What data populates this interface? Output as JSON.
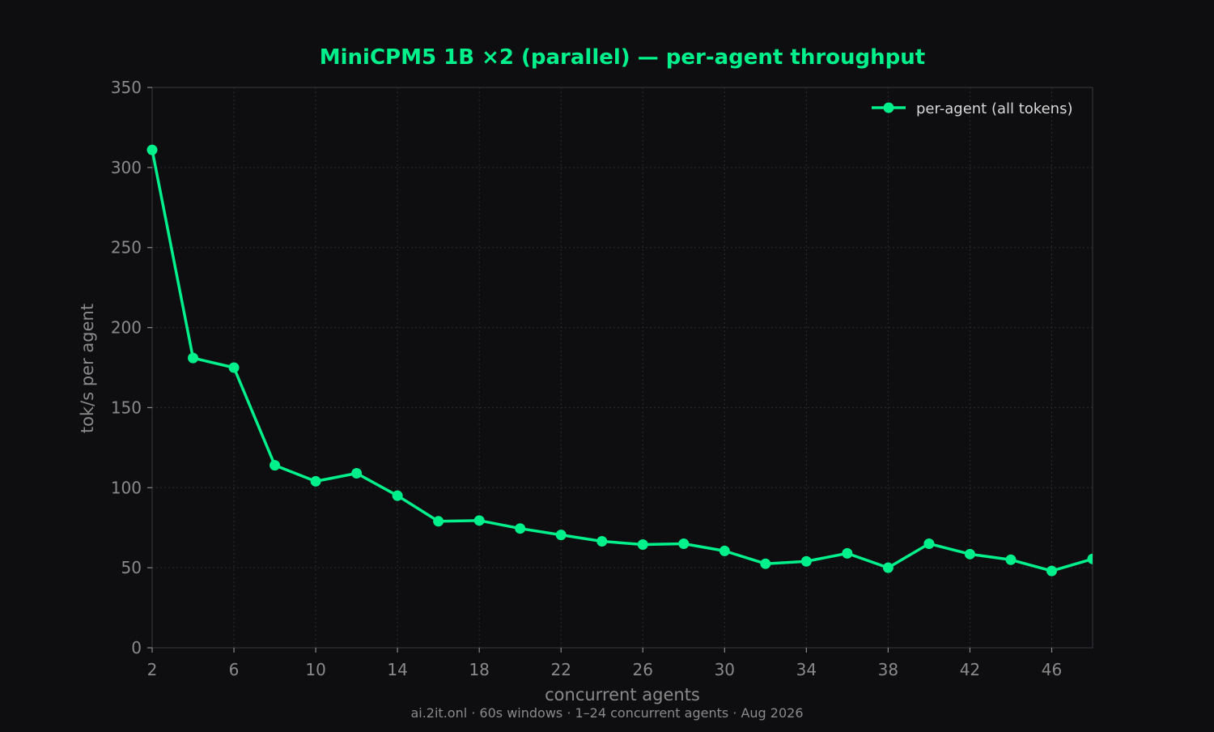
{
  "chart_data": {
    "type": "line",
    "title": "MiniCPM5 1B ×2 (parallel) — per-agent throughput",
    "xlabel": "concurrent agents",
    "ylabel": "tok/s per agent",
    "footer": "ai.2it.onl · 60s windows · 1–24 concurrent agents · Aug 2026",
    "xlim": [
      2,
      48
    ],
    "ylim": [
      0,
      350
    ],
    "xticks": [
      2,
      6,
      10,
      14,
      18,
      22,
      26,
      30,
      34,
      38,
      42,
      46
    ],
    "yticks": [
      0,
      50,
      100,
      150,
      200,
      250,
      300,
      350
    ],
    "grid": true,
    "legend_position": "top-right",
    "series": [
      {
        "name": "per-agent (all tokens)",
        "color": "#00f08c",
        "x": [
          2,
          4,
          6,
          8,
          10,
          12,
          14,
          16,
          18,
          20,
          22,
          24,
          26,
          28,
          30,
          32,
          34,
          36,
          38,
          40,
          42,
          44,
          46,
          48
        ],
        "y": [
          311,
          181,
          175,
          114,
          104,
          109,
          95,
          79,
          79.5,
          74.5,
          70.5,
          66.5,
          64.5,
          65,
          60.5,
          52.5,
          54,
          59,
          50,
          65,
          58.5,
          55,
          48,
          55.5
        ]
      }
    ]
  }
}
